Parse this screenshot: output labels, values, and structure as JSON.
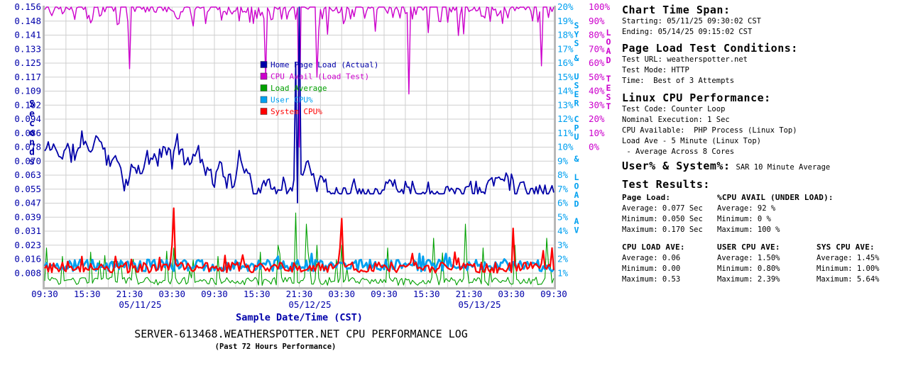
{
  "chart_data": {
    "type": "line",
    "title": "SERVER-613468.WEATHERSPOTTER.NET CPU PERFORMANCE LOG",
    "subtitle": "(Past 72 Hours Performance)",
    "x_axis": {
      "label": "Sample Date/Time (CST)",
      "hours_span": 72,
      "tick_interval_hours": 6,
      "grid_interval_hours": 3,
      "tick_labels": [
        "09:30",
        "15:30",
        "21:30",
        "03:30",
        "09:30",
        "15:30",
        "21:30",
        "03:30",
        "09:30",
        "15:30",
        "21:30",
        "03:30",
        "09:30"
      ],
      "date_labels": [
        "05/11/25",
        "05/12/25",
        "05/13/25"
      ],
      "label_color": "#0000AA"
    },
    "y_axis_left": {
      "label": "Seconds",
      "color": "#0000AA",
      "min": 0,
      "max": 0.156,
      "tick_labels": [
        "0.008",
        "0.016",
        "0.023",
        "0.031",
        "0.039",
        "0.047",
        "0.055",
        "0.063",
        "0.070",
        "0.078",
        "0.086",
        "0.094",
        "0.102",
        "0.109",
        "0.117",
        "0.125",
        "0.133",
        "0.141",
        "0.148",
        "0.156"
      ]
    },
    "y_axis_right_cpu": {
      "label": "SYS & USER CPU & LOAD AV",
      "label_words": [
        "SYS",
        "&",
        "USER",
        "CPU",
        "&",
        "LOAD",
        "AV"
      ],
      "color": "#00A0F0",
      "tick_labels": [
        "1%",
        "2%",
        "3%",
        "4%",
        "5%",
        "6%",
        "7%",
        "8%",
        "9%",
        "10%",
        "11%",
        "12%",
        "13%",
        "14%",
        "15%",
        "16%",
        "17%",
        "18%",
        "19%",
        "20%"
      ]
    },
    "y_axis_right_loadtest": {
      "label": "LOAD TEST",
      "label_words": [
        "LOAD",
        "TEST"
      ],
      "color": "#CC00CC",
      "tick_labels": [
        "0%",
        "10%",
        "20%",
        "30%",
        "40%",
        "50%",
        "60%",
        "70%",
        "80%",
        "90%",
        "100%"
      ]
    },
    "legend": [
      {
        "label": "Home Page Load (Actual)",
        "color": "#0000A8"
      },
      {
        "label": "CPU Avail (Load Test)",
        "color": "#CC00CC"
      },
      {
        "label": "Load Average",
        "color": "#00A000"
      },
      {
        "label": "User CPU%",
        "color": "#00A0F0"
      },
      {
        "label": "System CPU%",
        "color": "#FF0000"
      }
    ],
    "grid": true,
    "series": [
      {
        "name": "CPU Avail (Load Test)",
        "key": "cpu-avail",
        "color": "#CC00CC",
        "axis": "loadtest",
        "width": 1.4,
        "seed": 21,
        "stats": {
          "average": "92 %",
          "minimum": "0 %",
          "maximum": "100 %"
        },
        "gen": {
          "type": "avail"
        },
        "spikes": [
          [
            12,
            56
          ],
          [
            31.3,
            50
          ],
          [
            36,
            0
          ],
          [
            38.4,
            50
          ],
          [
            51.4,
            38
          ],
          [
            70.3,
            58
          ]
        ]
      },
      {
        "name": "Load Average",
        "key": "load-average",
        "color": "#00A000",
        "axis": "loadave",
        "width": 1.1,
        "seed": 33,
        "stats": {
          "average": "0.06",
          "minimum": "0.00",
          "maximum": "0.53"
        },
        "gen": {
          "type": "loadave"
        },
        "spikes": [
          [
            0.3,
            0.28
          ],
          [
            2.5,
            0.22
          ],
          [
            6.5,
            0.25
          ],
          [
            12.5,
            0.2
          ],
          [
            18.3,
            0.28
          ],
          [
            24.5,
            0.22
          ],
          [
            30.5,
            0.25
          ],
          [
            33,
            0.3
          ],
          [
            35.5,
            0.53
          ],
          [
            37,
            0.45
          ],
          [
            38.5,
            0.3
          ],
          [
            42,
            0.3
          ],
          [
            48.5,
            0.28
          ],
          [
            55,
            0.35
          ],
          [
            59.4,
            0.45
          ],
          [
            62,
            0.28
          ],
          [
            66.5,
            0.3
          ],
          [
            71,
            0.35
          ]
        ]
      },
      {
        "name": "User CPU%",
        "key": "user-cpu",
        "color": "#00A0F0",
        "axis": "cpu",
        "width": 2.8,
        "seed": 55,
        "stats": {
          "average": "1.50%",
          "minimum": "0.80%",
          "maximum": "2.39%"
        },
        "gen": {
          "type": "pct",
          "base": 1.55,
          "jitter": 0.42,
          "lo": 0.8,
          "hi": 2.39
        },
        "spikes": [
          [
            18.5,
            2.0
          ],
          [
            33,
            2.2
          ],
          [
            44,
            1.9
          ],
          [
            53.5,
            2.2
          ],
          [
            56.8,
            2.39
          ],
          [
            57.3,
            2.1
          ],
          [
            65,
            2.0
          ]
        ]
      },
      {
        "name": "System CPU%",
        "key": "system-cpu",
        "color": "#FF0000",
        "axis": "cpu",
        "width": 2.2,
        "seed": 77,
        "stats": {
          "average": "1.45%",
          "minimum": "1.00%",
          "maximum": "5.64%"
        },
        "gen": {
          "type": "pct",
          "base": 1.4,
          "jitter": 0.38,
          "lo": 1.0,
          "hi": 5.64
        },
        "spikes": [
          [
            10,
            2.2
          ],
          [
            18.05,
            3.0
          ],
          [
            18.3,
            5.64
          ],
          [
            28,
            2.3
          ],
          [
            41.75,
            2.8
          ],
          [
            42,
            4.9
          ],
          [
            52,
            2.4
          ],
          [
            58,
            2.5
          ],
          [
            66.2,
            4.2
          ],
          [
            70.5,
            2.6
          ],
          [
            71.8,
            2.8
          ]
        ]
      },
      {
        "name": "Home Page Load (Actual)",
        "key": "home-page-load",
        "color": "#0000A8",
        "axis": "seconds",
        "width": 1.8,
        "seed": 11,
        "stats": {
          "average": "0.077 Sec",
          "minimum": "0.050 Sec",
          "maximum": "0.170 Sec"
        },
        "gen": {
          "type": "walk",
          "base": 0.0755,
          "step": 0.011,
          "zig": 0.008,
          "lo": 0.052,
          "hi": 0.099
        },
        "spikes": [
          [
            35.5,
            0.125
          ],
          [
            35.75,
            0.047
          ],
          [
            36,
            0.17
          ],
          [
            36.25,
            0.063
          ]
        ]
      }
    ]
  },
  "panel": {
    "time_span": {
      "heading": "Chart Time Span:",
      "lines": [
        "Starting: 05/11/25 09:30:02 CST",
        "Ending: 05/14/25 09:15:02 CST"
      ]
    },
    "conditions": {
      "heading": "Page Load Test Conditions:",
      "lines": [
        "Test URL: weatherspotter.net",
        "Test Mode: HTTP",
        "Time:  Best of 3 Attempts"
      ]
    },
    "cpu_perf": {
      "heading": "Linux CPU Performance:",
      "lines": [
        "Test Code: Counter Loop",
        "Nominal Execution: 1 Sec",
        "CPU Available:  PHP Process (Linux Top)",
        "Load Ave - 5 Minute (Linux Top)",
        " - Average Across 8 Cores"
      ]
    },
    "user_system": {
      "heading": "User% & System%:",
      "note": "SAR 10 Minute Average"
    },
    "results": {
      "heading": "Test Results:",
      "groups": [
        {
          "heading": "Page Load:",
          "lines": [
            "Average: 0.077 Sec",
            "Minimum: 0.050 Sec",
            "Maximum: 0.170 Sec"
          ]
        },
        {
          "heading": "%CPU AVAIL (UNDER LOAD):",
          "lines": [
            "Average: 92 %",
            "Minimum: 0 %",
            "Maximum: 100 %"
          ]
        },
        {
          "heading": "CPU LOAD AVE:",
          "lines": [
            "Average: 0.06",
            "Minimum: 0.00",
            "Maximum: 0.53"
          ]
        },
        {
          "heading": "USER CPU AVE:",
          "lines": [
            "Average: 1.50%",
            "Minimum: 0.80%",
            "Maximum: 2.39%"
          ]
        },
        {
          "heading": "SYS CPU AVE:",
          "lines": [
            "Average: 1.45%",
            "Minimum: 1.00%",
            "Maximum: 5.64%"
          ]
        }
      ]
    }
  }
}
